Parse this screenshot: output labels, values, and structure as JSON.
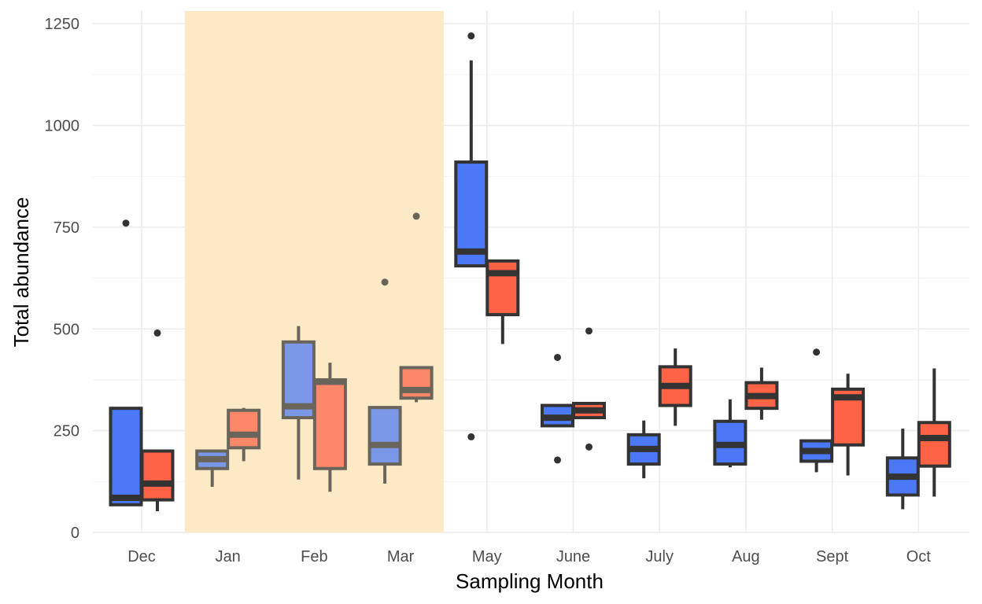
{
  "chart_data": {
    "type": "boxplot",
    "title": "",
    "xlabel": "Sampling Month",
    "ylabel": "Total abundance",
    "ylim": [
      0,
      1280
    ],
    "y_ticks": [
      0,
      250,
      500,
      750,
      1000,
      1250
    ],
    "y_tick_labels": [
      "0",
      "250",
      "500",
      "750",
      "1000",
      "1250"
    ],
    "grid": true,
    "legend": "none",
    "categories": [
      "Dec",
      "Jan",
      "Feb",
      "Mar",
      "May",
      "June",
      "July",
      "Aug",
      "Sept",
      "Oct"
    ],
    "highlight_band": {
      "from": "Jan",
      "to": "Mar",
      "color": "#fdebc6"
    },
    "series": [
      {
        "color": "#4a78f6",
        "boxes": [
          {
            "category": "Dec",
            "min": 65,
            "q1": 68,
            "median": 85,
            "q3": 305,
            "max": 305,
            "outliers": [
              760
            ]
          },
          {
            "category": "Jan",
            "min": 112,
            "q1": 157,
            "median": 180,
            "q3": 200,
            "max": 200,
            "outliers": []
          },
          {
            "category": "Feb",
            "min": 130,
            "q1": 282,
            "median": 310,
            "q3": 468,
            "max": 507,
            "outliers": []
          },
          {
            "category": "Mar",
            "min": 120,
            "q1": 168,
            "median": 215,
            "q3": 307,
            "max": 307,
            "outliers": [
              615
            ]
          },
          {
            "category": "May",
            "min": 655,
            "q1": 655,
            "median": 690,
            "q3": 910,
            "max": 1160,
            "outliers": [
              235,
              1220
            ]
          },
          {
            "category": "June",
            "min": 262,
            "q1": 262,
            "median": 282,
            "q3": 312,
            "max": 312,
            "outliers": [
              178,
              430
            ]
          },
          {
            "category": "July",
            "min": 133,
            "q1": 168,
            "median": 205,
            "q3": 240,
            "max": 275,
            "outliers": []
          },
          {
            "category": "Aug",
            "min": 160,
            "q1": 168,
            "median": 215,
            "q3": 273,
            "max": 327,
            "outliers": []
          },
          {
            "category": "Sept",
            "min": 148,
            "q1": 175,
            "median": 200,
            "q3": 225,
            "max": 225,
            "outliers": [
              443
            ]
          },
          {
            "category": "Oct",
            "min": 57,
            "q1": 92,
            "median": 137,
            "q3": 183,
            "max": 255,
            "outliers": []
          }
        ]
      },
      {
        "color": "#fe6346",
        "boxes": [
          {
            "category": "Dec",
            "min": 52,
            "q1": 80,
            "median": 120,
            "q3": 200,
            "max": 200,
            "outliers": [
              490
            ]
          },
          {
            "category": "Jan",
            "min": 175,
            "q1": 208,
            "median": 240,
            "q3": 300,
            "max": 306,
            "outliers": []
          },
          {
            "category": "Feb",
            "min": 100,
            "q1": 157,
            "median": 370,
            "q3": 375,
            "max": 417,
            "outliers": []
          },
          {
            "category": "Mar",
            "min": 320,
            "q1": 330,
            "median": 350,
            "q3": 405,
            "max": 405,
            "outliers": [
              777
            ]
          },
          {
            "category": "May",
            "min": 463,
            "q1": 535,
            "median": 637,
            "q3": 667,
            "max": 667,
            "outliers": []
          },
          {
            "category": "June",
            "min": 282,
            "q1": 282,
            "median": 300,
            "q3": 317,
            "max": 317,
            "outliers": [
              210,
              495
            ]
          },
          {
            "category": "July",
            "min": 262,
            "q1": 312,
            "median": 360,
            "q3": 407,
            "max": 452,
            "outliers": []
          },
          {
            "category": "Aug",
            "min": 277,
            "q1": 305,
            "median": 335,
            "q3": 368,
            "max": 405,
            "outliers": []
          },
          {
            "category": "Sept",
            "min": 140,
            "q1": 215,
            "median": 332,
            "q3": 352,
            "max": 390,
            "outliers": []
          },
          {
            "category": "Oct",
            "min": 88,
            "q1": 163,
            "median": 232,
            "q3": 270,
            "max": 403,
            "outliers": []
          }
        ]
      }
    ]
  }
}
